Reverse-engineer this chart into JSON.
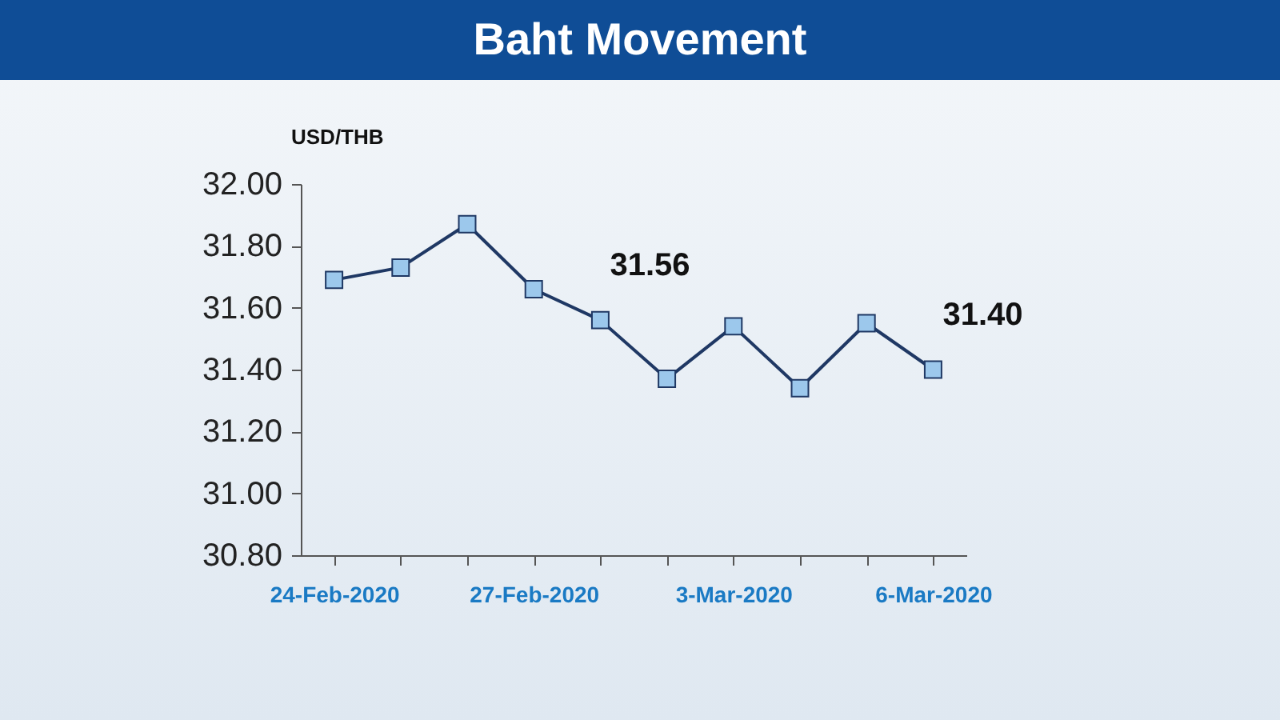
{
  "chart_data": {
    "type": "line",
    "title": "Baht Movement",
    "ylabel": "USD/THB",
    "categories": [
      "24-Feb-2020",
      null,
      null,
      "27-Feb-2020",
      null,
      null,
      "3-Mar-2020",
      null,
      null,
      "6-Mar-2020"
    ],
    "series": [
      {
        "color": "#1f3864",
        "values": [
          31.69,
          31.73,
          31.87,
          31.66,
          31.56,
          31.37,
          31.54,
          31.34,
          31.55,
          31.4
        ],
        "value_labels": [
          null,
          null,
          null,
          null,
          "31.56",
          null,
          null,
          null,
          null,
          "31.40"
        ]
      }
    ],
    "ylim": [
      30.8,
      32.0
    ],
    "yticks": [
      {
        "value": 30.8,
        "label": "30.80"
      },
      {
        "value": 31.0,
        "label": "31.00"
      },
      {
        "value": 31.2,
        "label": "31.20"
      },
      {
        "value": 31.4,
        "label": "31.40"
      },
      {
        "value": 31.6,
        "label": "31.60"
      },
      {
        "value": 31.8,
        "label": "31.80"
      },
      {
        "value": 32.0,
        "label": "32.00"
      }
    ],
    "marker": "square",
    "grid": false
  }
}
